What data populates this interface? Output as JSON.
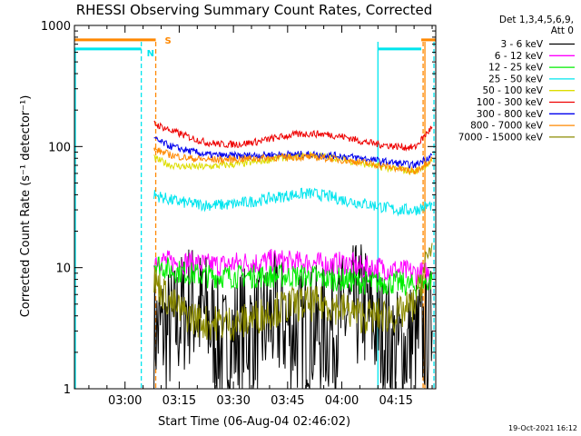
{
  "chart_data": {
    "type": "line",
    "title": "RHESSI Observing Summary Count Rates, Corrected",
    "xlabel": "Start Time (06-Aug-04 02:46:02)",
    "ylabel": "Corrected Count Rate (s⁻¹ detector⁻¹)",
    "x_unit": "minutes after 02:46:02",
    "xlim": [
      0,
      100
    ],
    "ylim": [
      1,
      1000
    ],
    "yscale": "log",
    "x_ticks": [
      {
        "label": "03:00",
        "x": 14
      },
      {
        "label": "03:15",
        "x": 29
      },
      {
        "label": "03:30",
        "x": 44
      },
      {
        "label": "03:45",
        "x": 59
      },
      {
        "label": "04:00",
        "x": 74
      },
      {
        "label": "04:15",
        "x": 89
      }
    ],
    "y_ticks": [
      {
        "label": "1",
        "y": 1
      },
      {
        "label": "10",
        "y": 10
      },
      {
        "label": "100",
        "y": 100
      },
      {
        "label": "1000",
        "y": 1000
      }
    ],
    "legend_header": [
      "Det 1,3,4,5,6,9,",
      "Att 0"
    ],
    "legend_placement": "right",
    "series": [
      {
        "name": "3 - 6 keV",
        "color": "#000000",
        "noise": 0.55,
        "y": [
          3,
          3,
          5,
          4,
          2,
          3,
          3,
          4,
          3,
          3,
          3,
          4,
          5,
          3,
          2,
          2.5,
          3
        ]
      },
      {
        "name": "6 - 12 keV",
        "color": "#ff00ff",
        "noise": 0.1,
        "y": [
          12,
          11,
          11,
          10.5,
          10.5,
          11,
          11,
          11.5,
          11,
          11,
          10.5,
          11,
          10,
          10,
          9.5,
          9,
          9
        ]
      },
      {
        "name": "12 - 25 keV",
        "color": "#00ee00",
        "noise": 0.1,
        "y": [
          11,
          9.5,
          9,
          8.5,
          8.5,
          8.5,
          8.5,
          8.5,
          8.5,
          8.5,
          8,
          8,
          7.5,
          7.5,
          7.5,
          7,
          8
        ]
      },
      {
        "name": "25 - 50 keV",
        "color": "#00e5ee",
        "noise": 0.05,
        "y": [
          40,
          36,
          34,
          33,
          33,
          34,
          36,
          38,
          40,
          41,
          39,
          36,
          34,
          32,
          30,
          30,
          33
        ]
      },
      {
        "name": "50 - 100 keV",
        "color": "#dddd00",
        "noise": 0.03,
        "y": [
          80,
          70,
          68,
          68,
          70,
          72,
          75,
          80,
          82,
          85,
          82,
          78,
          72,
          68,
          65,
          62,
          75
        ]
      },
      {
        "name": "100 - 300 keV",
        "color": "#ee0000",
        "noise": 0.03,
        "y": [
          155,
          135,
          120,
          108,
          104,
          105,
          110,
          118,
          125,
          128,
          126,
          120,
          110,
          104,
          100,
          98,
          145
        ]
      },
      {
        "name": "300 - 800 keV",
        "color": "#0000ee",
        "noise": 0.03,
        "y": [
          115,
          100,
          92,
          86,
          84,
          84,
          85,
          86,
          86,
          86,
          85,
          83,
          80,
          76,
          73,
          70,
          85
        ]
      },
      {
        "name": "800 - 7000 keV",
        "color": "#ff8800",
        "noise": 0.03,
        "y": [
          95,
          85,
          80,
          78,
          78,
          79,
          80,
          81,
          82,
          82,
          80,
          77,
          74,
          70,
          66,
          62,
          80
        ]
      },
      {
        "name": "7000 - 15000 keV",
        "color": "#8b8b00",
        "noise": 0.15,
        "y": [
          8,
          5,
          4,
          3.5,
          3.5,
          3.5,
          4,
          4.5,
          5,
          5,
          5,
          4.5,
          4,
          4,
          4,
          5,
          16
        ]
      }
    ],
    "series_x": {
      "start": 22,
      "end": 99
    },
    "annotations": [
      {
        "label": "S",
        "color": "#ff8800",
        "x": 24
      },
      {
        "label": "N",
        "color": "#00e5ee",
        "x": 19
      }
    ],
    "flag_bars": [
      {
        "name": "orange",
        "color": "#ff8800",
        "y": 760,
        "segments": [
          [
            0,
            22.5
          ],
          [
            96,
            100
          ]
        ]
      },
      {
        "name": "cyan",
        "color": "#00e5ee",
        "y": 640,
        "segments": [
          [
            0,
            18.5
          ],
          [
            84,
            96
          ]
        ]
      }
    ],
    "vertical_lines": [
      {
        "x": 18.5,
        "color": "#00e5ee",
        "dashed": true
      },
      {
        "x": 22.5,
        "color": "#ff8800",
        "dashed": true
      },
      {
        "x": 84,
        "color": "#00e5ee",
        "dashed": false
      },
      {
        "x": 97,
        "color": "#ff8800",
        "dashed": false
      },
      {
        "x": 99.5,
        "color": "#00e5ee",
        "dashed": true
      },
      {
        "x": 96.5,
        "color": "#ff8800",
        "dashed": true
      }
    ],
    "footer_timestamp": "19-Oct-2021 16:12"
  }
}
